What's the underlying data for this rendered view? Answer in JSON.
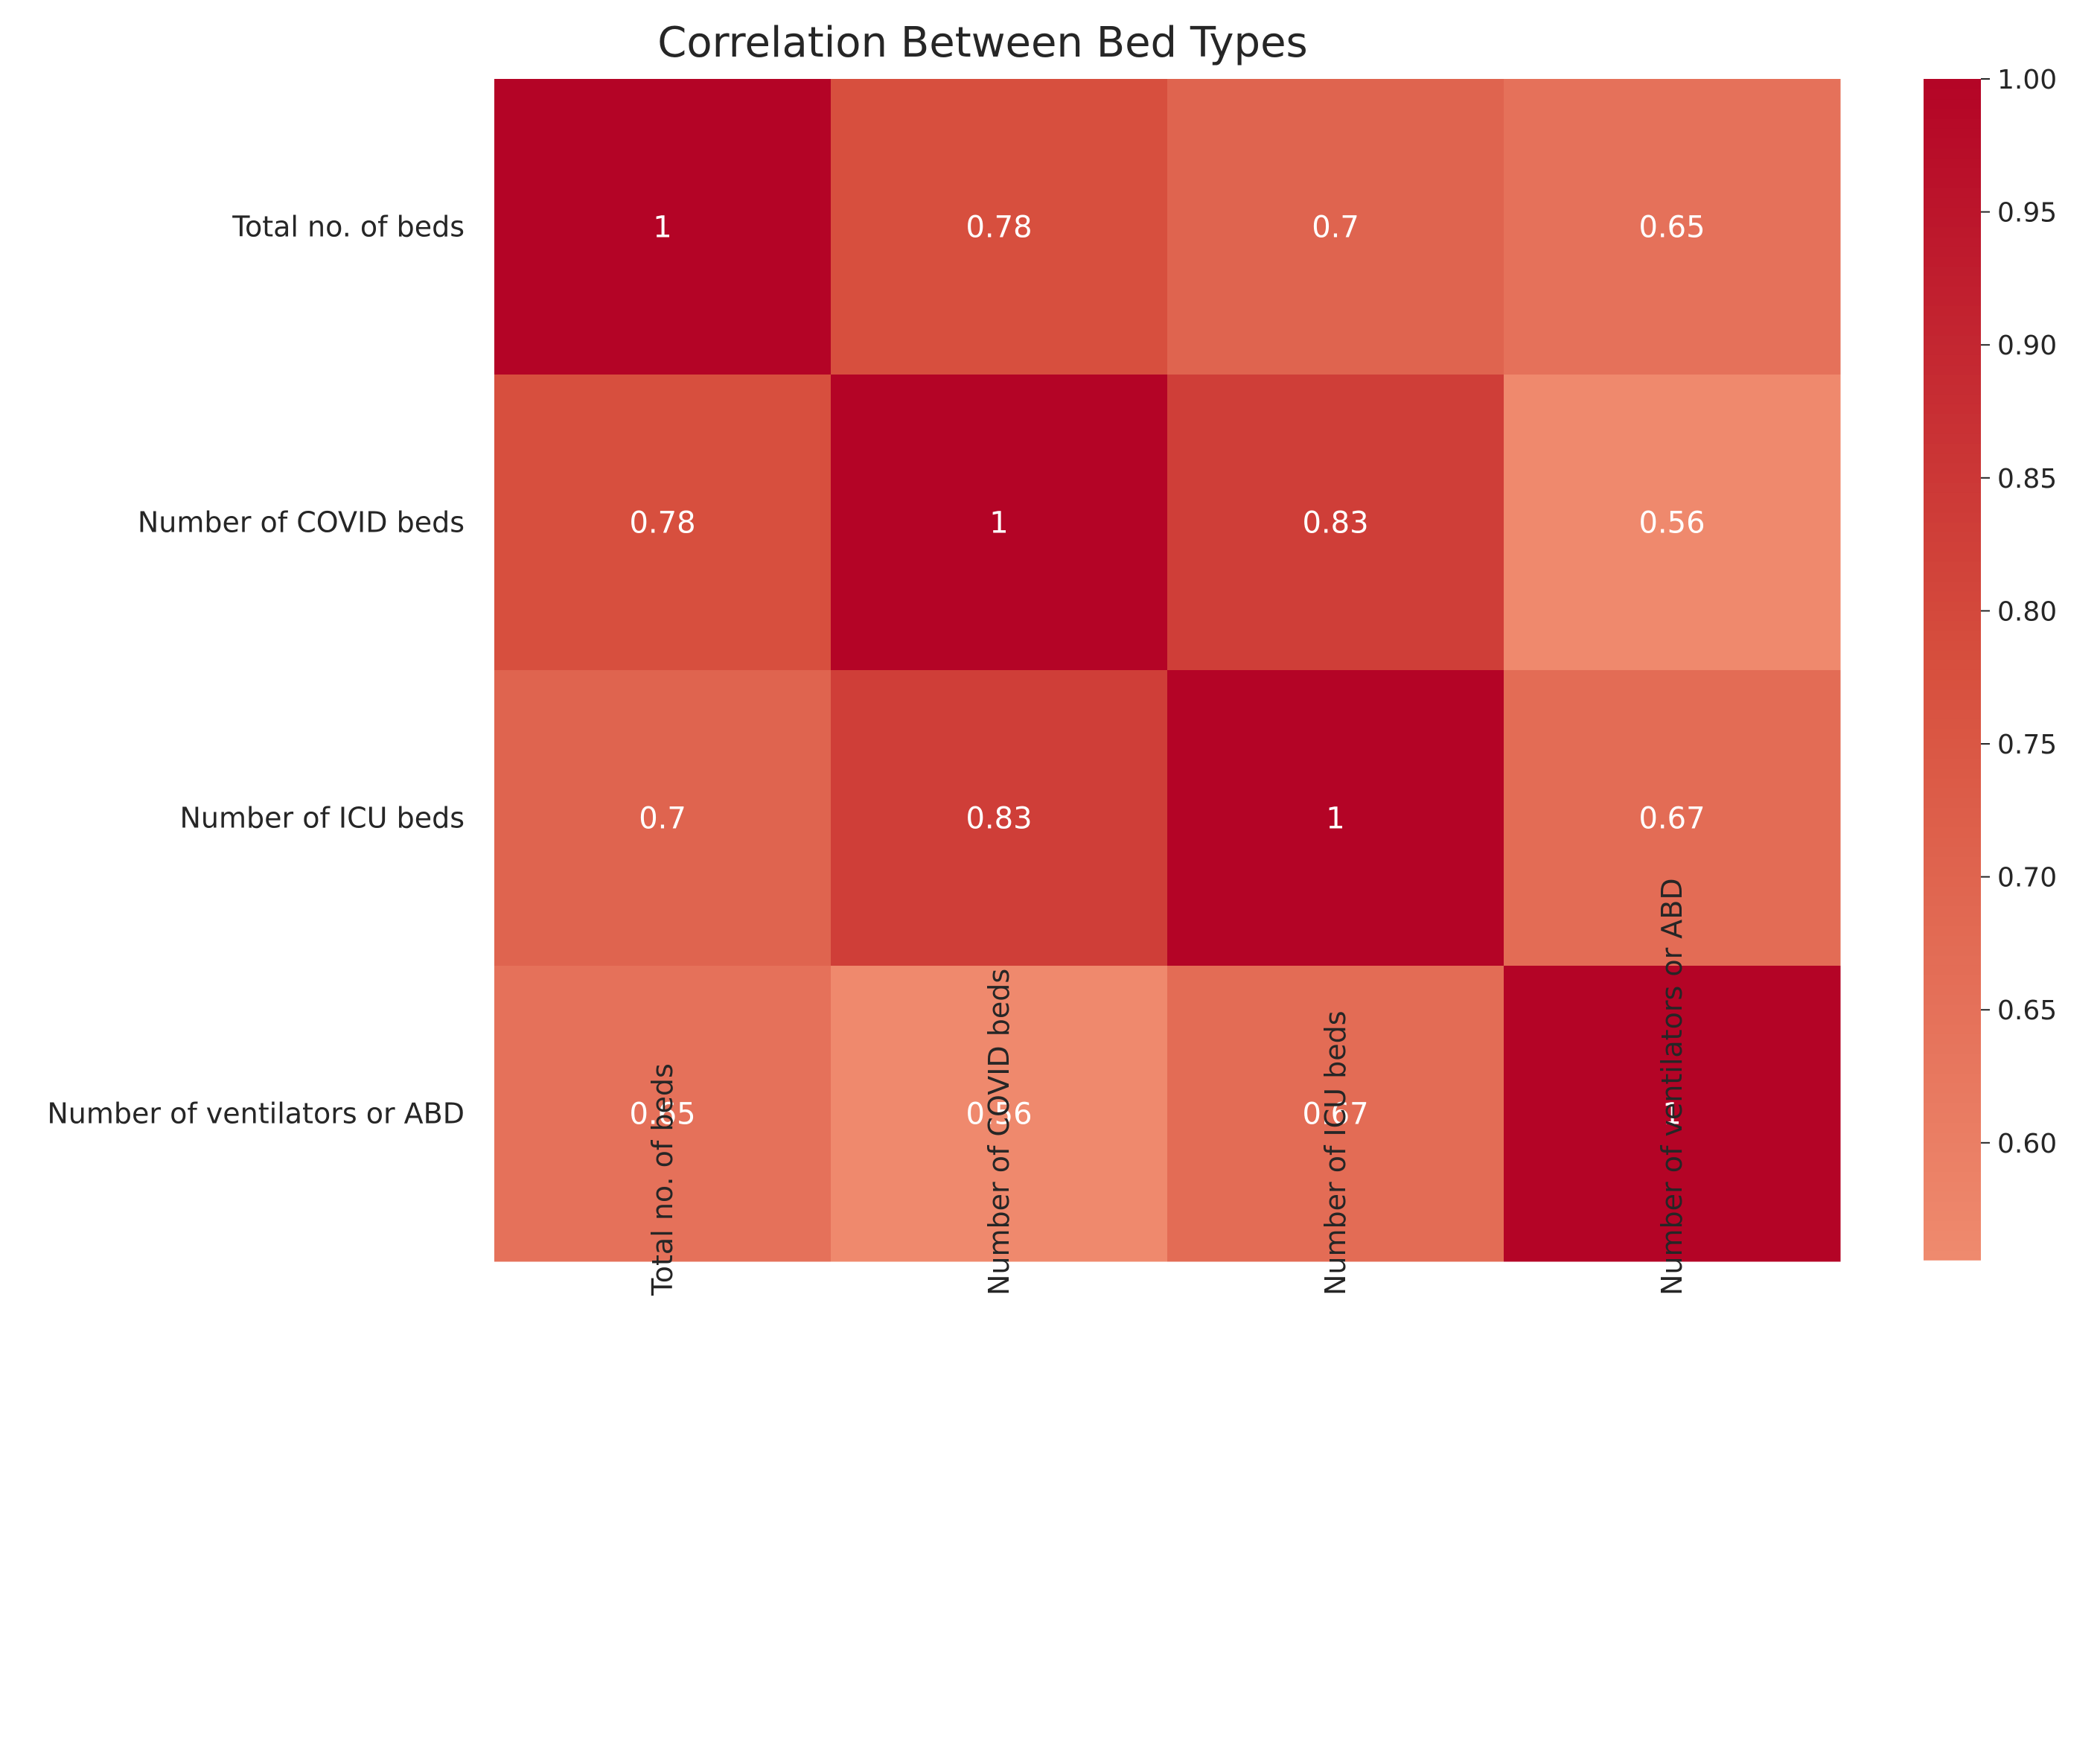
{
  "chart_data": {
    "type": "heatmap",
    "title": "Correlation Between Bed Types",
    "rows": [
      "Total no. of beds",
      "Number of COVID beds",
      "Number of ICU beds",
      "Number of ventilators or ABD"
    ],
    "columns": [
      "Total no. of beds",
      "Number of COVID beds",
      "Number of ICU beds",
      "Number of ventilators or ABD"
    ],
    "values": [
      [
        1.0,
        0.78,
        0.7,
        0.65
      ],
      [
        0.78,
        1.0,
        0.83,
        0.56
      ],
      [
        0.7,
        0.83,
        1.0,
        0.67
      ],
      [
        0.65,
        0.56,
        0.67,
        1.0
      ]
    ],
    "cell_labels": [
      [
        "1",
        "0.78",
        "0.7",
        "0.65"
      ],
      [
        "0.78",
        "1",
        "0.83",
        "0.56"
      ],
      [
        "0.7",
        "0.83",
        "1",
        "0.67"
      ],
      [
        "0.65",
        "0.56",
        "0.67",
        "1"
      ]
    ],
    "colorbar": {
      "range": [
        0.556,
        1.0
      ],
      "ticks": [
        "0.60",
        "0.65",
        "0.70",
        "0.75",
        "0.80",
        "0.85",
        "0.90",
        "0.95",
        "1.00"
      ],
      "colors": {
        "low": "#ef8a6e",
        "mid": "#d7503e",
        "high": "#b40426"
      }
    },
    "xlabel": "",
    "ylabel": ""
  }
}
